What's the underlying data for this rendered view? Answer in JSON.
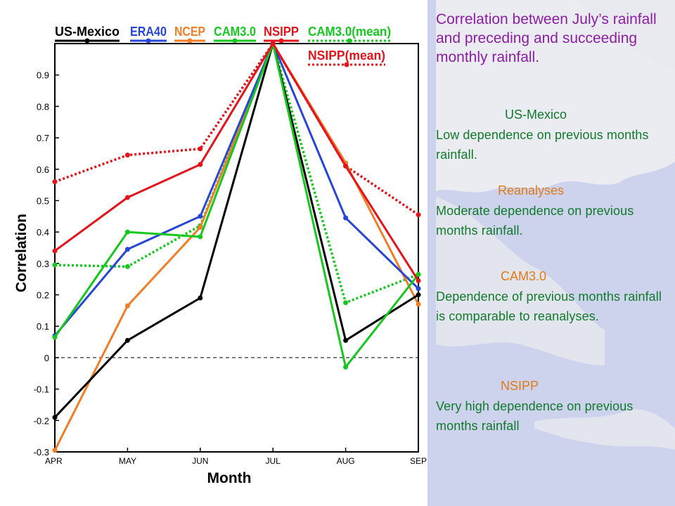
{
  "slide": {
    "title": "Correlation between July’s rainfall and preceding and succeeding monthly rainfall.",
    "notes": [
      {
        "heading": "US-Mexico",
        "body": "Low dependence on previous months rainfall.",
        "heading_color": "#107a2b"
      },
      {
        "heading": "Reanalyses",
        "body": "Moderate dependence on previous months rainfall.",
        "heading_color": "#e07a17"
      },
      {
        "heading": "CAM3.0",
        "body": "Dependence of previous months rainfall is comparable to reanalyses.",
        "heading_color": "#e07a17"
      },
      {
        "heading": "NSIPP",
        "body": "Very high dependence on previous months rainfall",
        "heading_color": "#e07a17"
      }
    ]
  },
  "chart_data": {
    "type": "line",
    "title": "",
    "xlabel": "Month",
    "ylabel": "Correlation",
    "categories": [
      "APR",
      "MAY",
      "JUN",
      "JUL",
      "AUG",
      "SEP"
    ],
    "ylim": [
      -0.3,
      1.0
    ],
    "yticks": [
      -0.3,
      -0.2,
      -0.1,
      0,
      0.1,
      0.2,
      0.3,
      0.4,
      0.5,
      0.6,
      0.7,
      0.8,
      0.9
    ],
    "ytick_labels": [
      "-0.3",
      "-0.2",
      "-0.1",
      "0",
      "0.1",
      "0.2",
      "0.3",
      "0.4",
      "0.5",
      "0.6",
      "0.7",
      "0.8",
      "0.9"
    ],
    "grid": false,
    "zero_line": true,
    "legend_position": "top",
    "series": [
      {
        "name": "US-Mexico",
        "color": "#000000",
        "style": "solid",
        "values": [
          -0.19,
          0.055,
          0.19,
          1.0,
          0.055,
          0.2
        ]
      },
      {
        "name": "ERA40",
        "color": "#2846d6",
        "style": "solid",
        "values": [
          0.07,
          0.345,
          0.45,
          1.0,
          0.445,
          0.22
        ]
      },
      {
        "name": "NCEP",
        "color": "#f07d28",
        "style": "solid",
        "values": [
          -0.295,
          0.165,
          0.415,
          1.0,
          0.62,
          0.17
        ]
      },
      {
        "name": "CAM3.0",
        "color": "#16c81e",
        "style": "solid",
        "values": [
          0.065,
          0.4,
          0.385,
          1.0,
          -0.03,
          0.265
        ]
      },
      {
        "name": "NSIPP",
        "color": "#e3141b",
        "style": "solid",
        "values": [
          0.34,
          0.51,
          0.615,
          1.0,
          0.61,
          0.245
        ]
      },
      {
        "name": "CAM3.0(mean)",
        "color": "#16c81e",
        "style": "dotted",
        "values": [
          0.295,
          0.29,
          0.42,
          1.0,
          0.175,
          0.265
        ]
      },
      {
        "name": "NSIPP(mean)",
        "color": "#e3141b",
        "style": "dotted",
        "values": [
          0.56,
          0.645,
          0.665,
          1.0,
          0.61,
          0.455
        ]
      }
    ]
  }
}
